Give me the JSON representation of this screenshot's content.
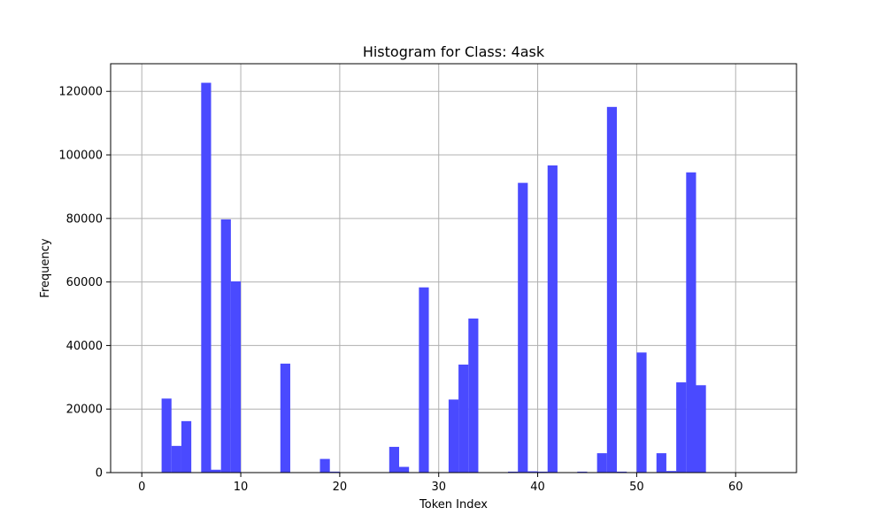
{
  "chart_data": {
    "type": "bar",
    "title": "Histogram for Class: 4ask",
    "xlabel": "Token Index",
    "ylabel": "Frequency",
    "xlim": [
      -3.15,
      66.15
    ],
    "ylim": [
      0,
      128700
    ],
    "xticks": [
      0,
      10,
      20,
      30,
      40,
      50,
      60
    ],
    "yticks": [
      0,
      20000,
      40000,
      60000,
      80000,
      100000,
      120000
    ],
    "grid": true,
    "bar_color": "#4a4aff",
    "bin_edges": [
      0,
      1,
      2,
      3,
      4,
      5,
      6,
      7,
      8,
      9,
      10,
      11,
      12,
      13,
      14,
      15,
      16,
      17,
      18,
      19,
      20,
      21,
      22,
      23,
      24,
      25,
      26,
      27,
      28,
      29,
      30,
      31,
      32,
      33,
      34,
      35,
      36,
      37,
      38,
      39,
      40,
      41,
      42,
      43,
      44,
      45,
      46,
      47,
      48,
      49,
      50,
      51,
      52,
      53,
      54,
      55,
      56,
      57,
      58,
      59,
      60,
      61,
      62,
      63
    ],
    "counts": [
      0,
      0,
      23300,
      8400,
      16200,
      0,
      122700,
      900,
      79700,
      60200,
      0,
      0,
      0,
      0,
      34300,
      0,
      0,
      0,
      4300,
      300,
      0,
      0,
      0,
      0,
      0,
      8100,
      1800,
      0,
      58300,
      0,
      0,
      23000,
      34000,
      48500,
      0,
      0,
      0,
      300,
      91200,
      400,
      300,
      96700,
      0,
      0,
      300,
      0,
      6100,
      115100,
      300,
      0,
      37800,
      0,
      6100,
      500,
      28400,
      94500,
      27500,
      0,
      0,
      0,
      0,
      0,
      0
    ]
  }
}
